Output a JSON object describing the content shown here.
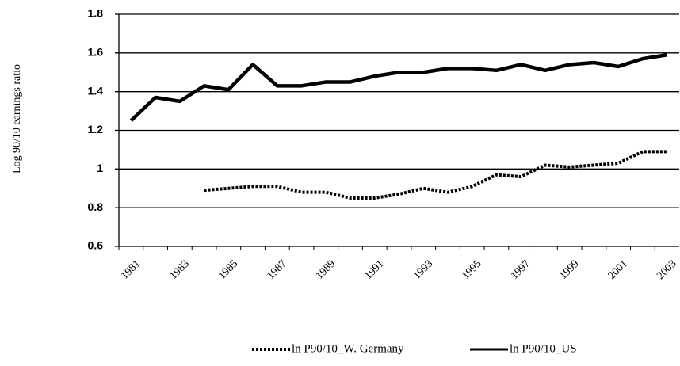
{
  "chart_data": {
    "type": "line",
    "y_label": "Log 90/10 earnings ratio",
    "categories": [
      "1981",
      null,
      "1983",
      null,
      "1985",
      null,
      "1987",
      null,
      "1989",
      null,
      "1991",
      null,
      "1993",
      null,
      "1995",
      null,
      "1997",
      null,
      "1999",
      null,
      "2001",
      null,
      "2003"
    ],
    "series": [
      {
        "name": "ln P90/10_W. Germany",
        "color": "#000000",
        "dashed": true,
        "values": [
          null,
          null,
          null,
          0.89,
          0.9,
          0.91,
          0.91,
          0.88,
          0.88,
          0.85,
          0.85,
          0.87,
          0.9,
          0.88,
          0.91,
          0.97,
          0.96,
          1.02,
          1.01,
          1.02,
          1.03,
          1.09,
          1.09
        ]
      },
      {
        "name": "ln P90/10_US",
        "color": "#000000",
        "dashed": false,
        "values": [
          1.25,
          1.37,
          1.35,
          1.43,
          1.41,
          1.54,
          1.43,
          1.43,
          1.45,
          1.45,
          1.48,
          1.5,
          1.5,
          1.52,
          1.52,
          1.51,
          1.54,
          1.51,
          1.54,
          1.55,
          1.53,
          1.57,
          1.59
        ]
      }
    ],
    "ylim": [
      0.6,
      1.8
    ],
    "yticks": [
      0.6,
      0.8,
      1,
      1.2,
      1.4,
      1.6,
      1.8
    ],
    "grid": true,
    "legend": "bottom"
  }
}
